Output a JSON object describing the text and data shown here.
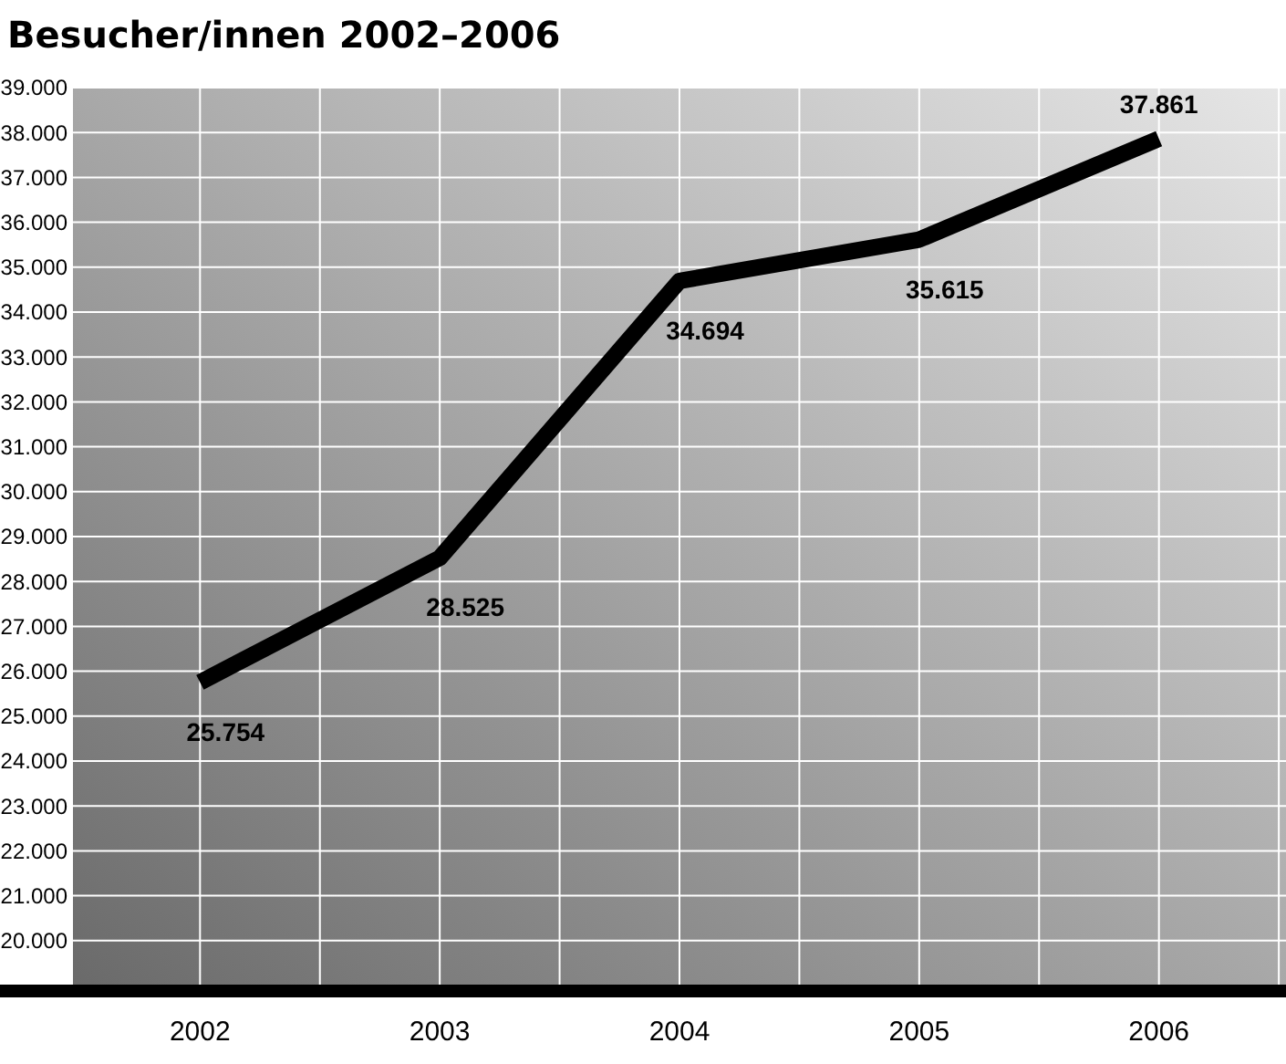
{
  "chart_data": {
    "type": "line",
    "title": "Besucher/innen 2002–2006",
    "categories": [
      "2002",
      "2003",
      "2004",
      "2005",
      "2006"
    ],
    "series": [
      {
        "color": "#000000",
        "values": [
          25754,
          28525,
          34694,
          35615,
          37861
        ],
        "value_labels": [
          "25.754",
          "28.525",
          "34.694",
          "35.615",
          "37.861"
        ]
      }
    ],
    "ylim": [
      19000,
      39000
    ],
    "yticks": [
      {
        "value": 20000,
        "label": "20.000"
      },
      {
        "value": 21000,
        "label": "21.000"
      },
      {
        "value": 22000,
        "label": "22.000"
      },
      {
        "value": 23000,
        "label": "23.000"
      },
      {
        "value": 24000,
        "label": "24.000"
      },
      {
        "value": 25000,
        "label": "25.000"
      },
      {
        "value": 26000,
        "label": "26.000"
      },
      {
        "value": 27000,
        "label": "27.000"
      },
      {
        "value": 28000,
        "label": "28.000"
      },
      {
        "value": 29000,
        "label": "29.000"
      },
      {
        "value": 30000,
        "label": "30.000"
      },
      {
        "value": 31000,
        "label": "31.000"
      },
      {
        "value": 32000,
        "label": "32.000"
      },
      {
        "value": 33000,
        "label": "33.000"
      },
      {
        "value": 34000,
        "label": "34.000"
      },
      {
        "value": 35000,
        "label": "35.000"
      },
      {
        "value": 36000,
        "label": "36.000"
      },
      {
        "value": 37000,
        "label": "37.000"
      },
      {
        "value": 38000,
        "label": "38.000"
      },
      {
        "value": 39000,
        "label": "39.000"
      }
    ],
    "grid": true,
    "marker": "none",
    "line_style": "solid"
  }
}
